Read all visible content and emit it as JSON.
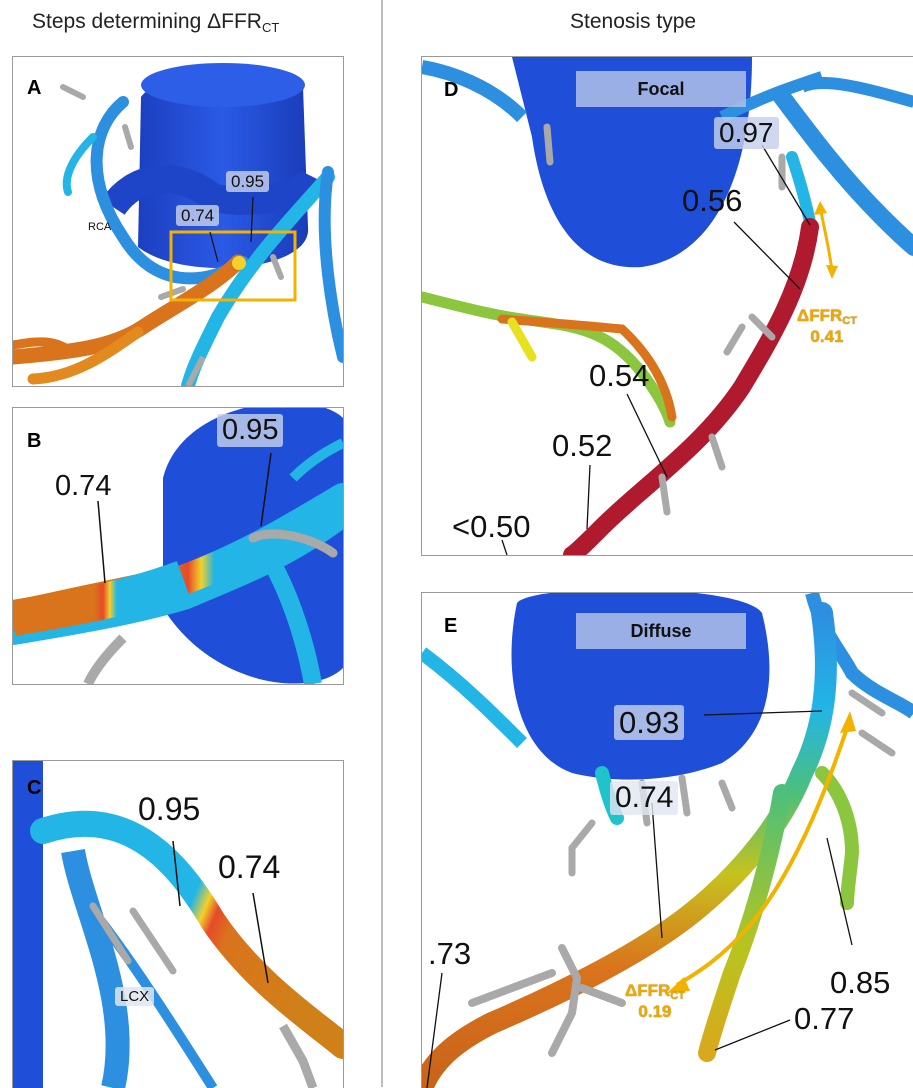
{
  "left_title": {
    "main": "Steps determining ΔFFR",
    "sub": "CT"
  },
  "right_title": "Stenosis type",
  "panel_a": {
    "letter": "A",
    "val_095": "0.95",
    "val_074": "0.74",
    "rca": "RCA"
  },
  "panel_b": {
    "letter": "B",
    "val_095": "0.95",
    "val_074": "0.74"
  },
  "panel_c": {
    "letter": "C",
    "val_095": "0.95",
    "val_074": "0.74",
    "lcx": "LCX"
  },
  "panel_d": {
    "letter": "D",
    "type": "Focal",
    "val_097": "0.97",
    "val_056": "0.56",
    "val_054": "0.54",
    "val_052": "0.52",
    "val_050": "<0.50",
    "dffr_main": "ΔFFR",
    "dffr_sub": "CT",
    "dffr_val": "0.41"
  },
  "panel_e": {
    "letter": "E",
    "type": "Diffuse",
    "val_093": "0.93",
    "val_074": "0.74",
    "val_073": ".73",
    "val_085": "0.85",
    "val_077": "0.77",
    "dffr_main": "ΔFFR",
    "dffr_sub": "CT",
    "dffr_val": "0.19"
  },
  "colors": {
    "aorta": "#1f4fd9",
    "vessel_light": "#22b5e6",
    "vessel_mid": "#2d8fe0",
    "vessel_orange": "#d9731c",
    "vessel_red": "#b01a2e",
    "branch_gray": "#a9a9a9",
    "accent": "#f2b300"
  }
}
